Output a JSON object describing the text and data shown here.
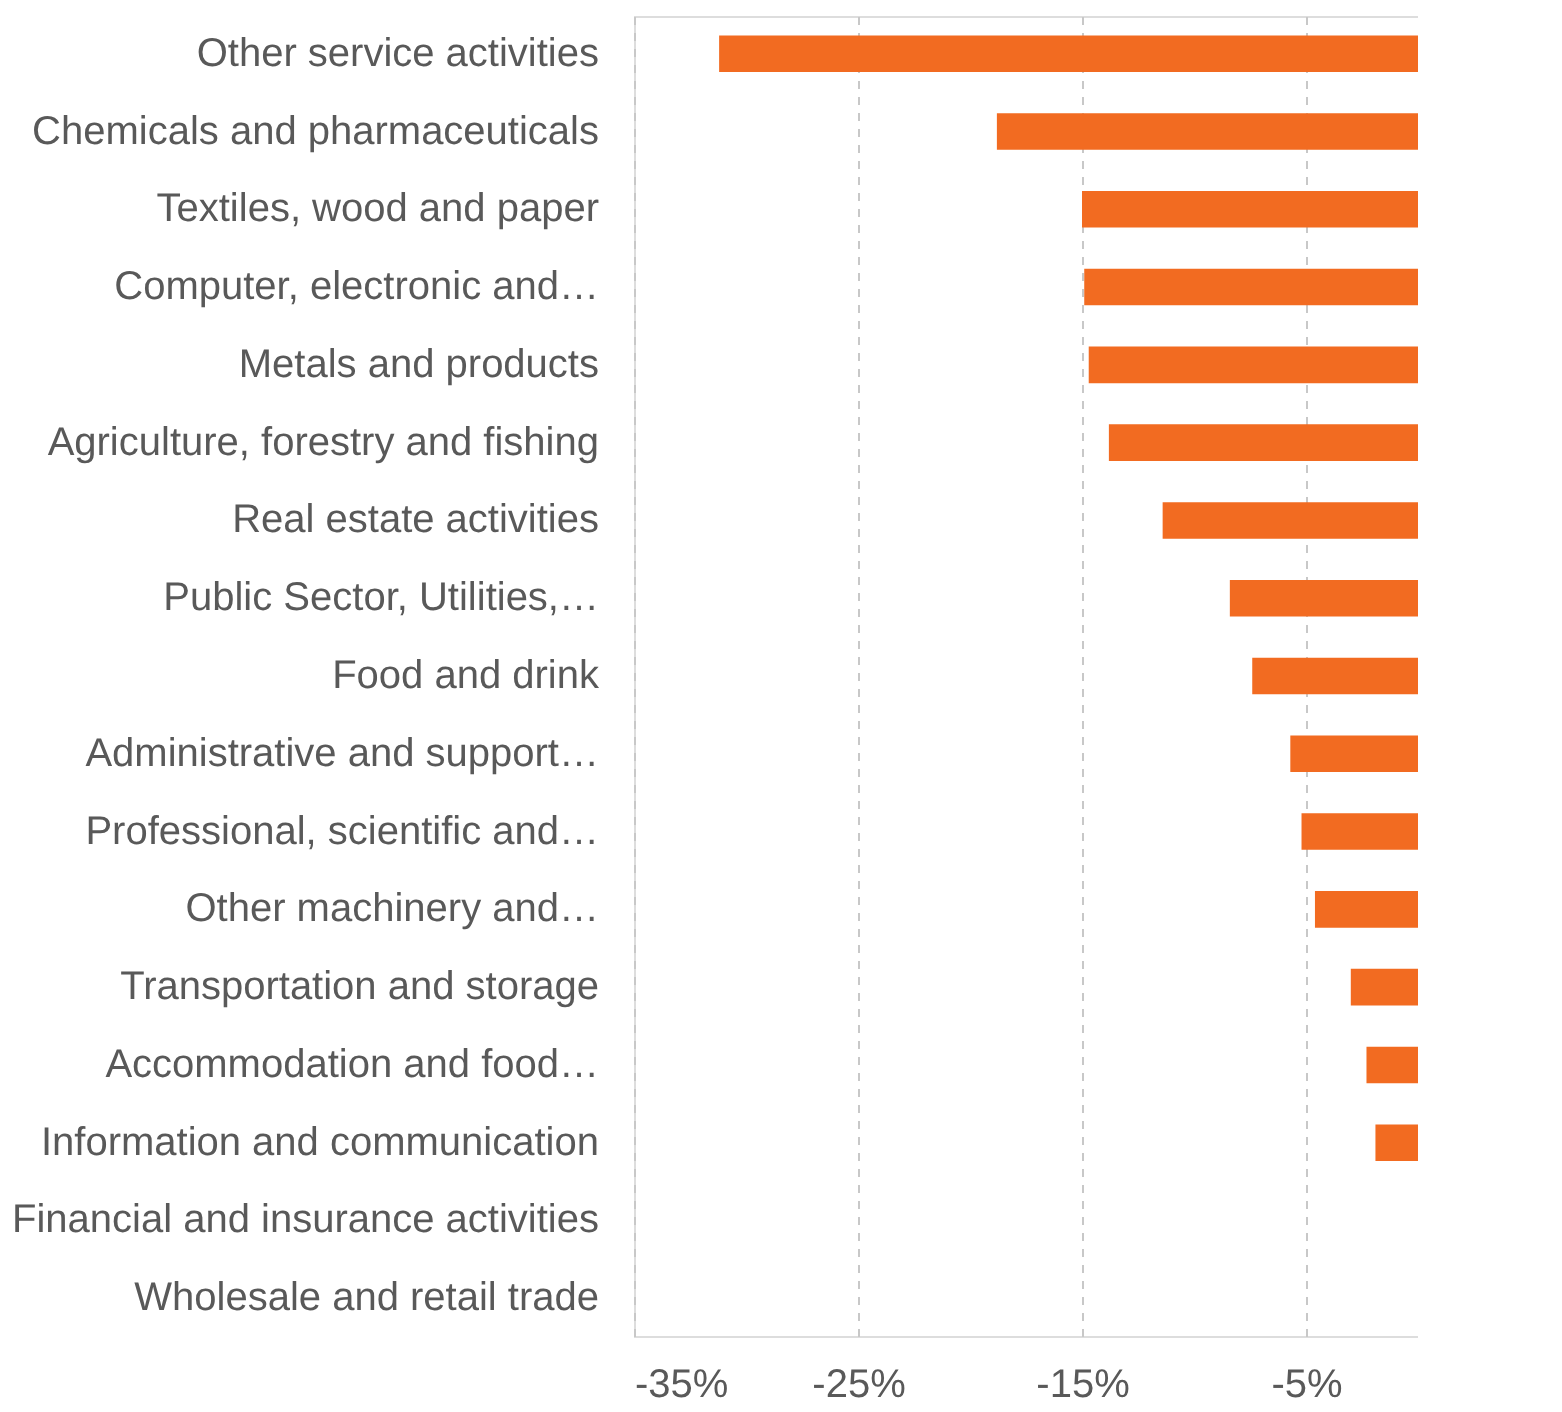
{
  "chart_data": {
    "type": "bar",
    "orientation": "horizontal",
    "categories": [
      "Other service activities",
      "Chemicals and pharmaceuticals",
      "Textiles, wood and paper",
      "Computer, electronic and…",
      "Metals and products",
      "Agriculture, forestry and fishing",
      "Real estate activities",
      "Public Sector, Utilities,…",
      "Food and drink",
      "Administrative and support…",
      "Professional, scientific and…",
      "Other machinery and…",
      "Transportation and storage",
      "Accommodation and food…",
      "Information and communication",
      "Financial and insurance activities",
      "Wholesale and retail trade"
    ],
    "values": [
      -31.2,
      -18.8,
      -15.0,
      -14.9,
      -14.7,
      -13.8,
      -11.4,
      -8.4,
      -7.4,
      -5.7,
      -5.2,
      -4.6,
      -3.0,
      -2.3,
      -1.9,
      0,
      0
    ],
    "color": "#f26b21",
    "xlim": [
      -35,
      0
    ],
    "xticks": [
      {
        "value": -35,
        "label": "-35%"
      },
      {
        "value": -25,
        "label": "-25%"
      },
      {
        "value": -15,
        "label": "-15%"
      },
      {
        "value": -5,
        "label": "-5%"
      }
    ],
    "grid": "x"
  }
}
